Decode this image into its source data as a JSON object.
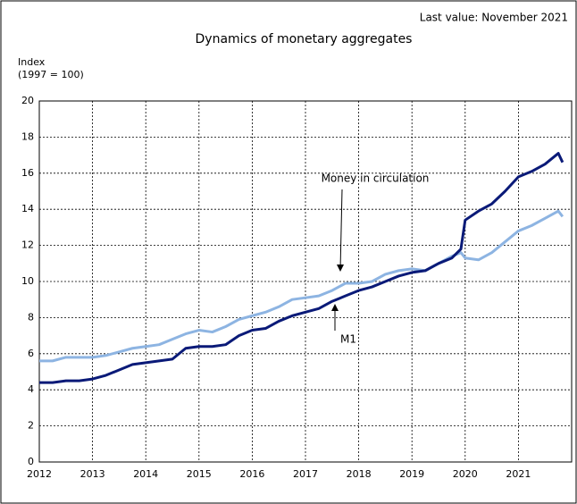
{
  "chart_data": {
    "type": "line",
    "title": "Dynamics of monetary aggregates",
    "subtitle": "Last value: November 2021",
    "y_label": "Index",
    "y_label_note": "(1997 = 100)",
    "annotations": [
      "Money in circulation",
      "M1"
    ],
    "x": [
      2012,
      2012.25,
      2012.5,
      2012.75,
      2013,
      2013.25,
      2013.5,
      2013.75,
      2014,
      2014.25,
      2014.5,
      2014.75,
      2015,
      2015.25,
      2015.5,
      2015.75,
      2016,
      2016.25,
      2016.5,
      2016.75,
      2017,
      2017.25,
      2017.5,
      2017.75,
      2018,
      2018.25,
      2018.5,
      2018.75,
      2019,
      2019.25,
      2019.5,
      2019.75,
      2019.92,
      2020,
      2020.25,
      2020.5,
      2020.75,
      2021,
      2021.25,
      2021.5,
      2021.75,
      2021.83
    ],
    "series": [
      {
        "name": "Money in circulation",
        "color": "#8db4e2",
        "values": [
          5.6,
          5.6,
          5.8,
          5.8,
          5.8,
          5.9,
          6.1,
          6.3,
          6.4,
          6.5,
          6.8,
          7.1,
          7.3,
          7.2,
          7.5,
          7.9,
          8.1,
          8.3,
          8.6,
          9.0,
          9.1,
          9.2,
          9.5,
          9.9,
          9.9,
          10.0,
          10.4,
          10.6,
          10.7,
          10.6,
          11.0,
          11.4,
          11.6,
          11.3,
          11.2,
          11.6,
          12.2,
          12.8,
          13.1,
          13.5,
          13.9,
          13.6
        ]
      },
      {
        "name": "M1",
        "color": "#0a1a78",
        "values": [
          4.4,
          4.4,
          4.5,
          4.5,
          4.6,
          4.8,
          5.1,
          5.4,
          5.5,
          5.6,
          5.7,
          6.3,
          6.4,
          6.4,
          6.5,
          7.0,
          7.3,
          7.4,
          7.8,
          8.1,
          8.3,
          8.5,
          8.9,
          9.2,
          9.5,
          9.7,
          10.0,
          10.3,
          10.5,
          10.6,
          11.0,
          11.3,
          11.8,
          13.4,
          13.9,
          14.3,
          15.0,
          15.8,
          16.1,
          16.5,
          17.1,
          16.6
        ]
      }
    ],
    "xlim": [
      2012,
      2022
    ],
    "xticks": [
      2012,
      2013,
      2014,
      2015,
      2016,
      2017,
      2018,
      2019,
      2020,
      2021
    ],
    "ylim": [
      0,
      20
    ],
    "yticks": [
      0,
      2,
      4,
      6,
      8,
      10,
      12,
      14,
      16,
      18,
      20
    ],
    "grid": true
  }
}
